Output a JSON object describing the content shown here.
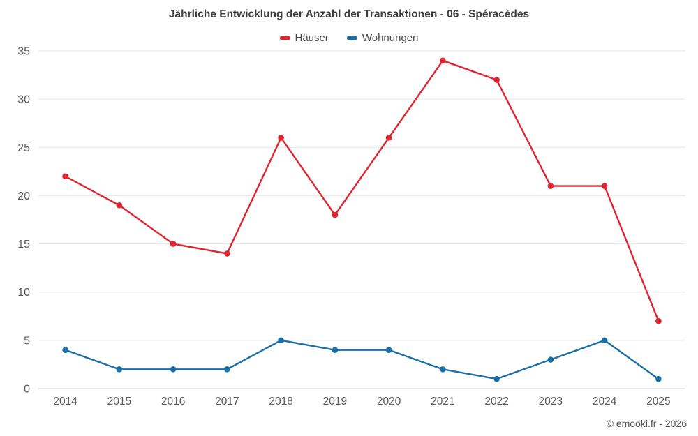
{
  "header": {
    "title": "Jährliche Entwicklung der Anzahl der Transaktionen - 06 - Spéracèdes"
  },
  "legend": [
    {
      "label": "Häuser",
      "color": "#e02430"
    },
    {
      "label": "Wohnungen",
      "color": "#1a6fa8"
    }
  ],
  "footer": {
    "credit": "© emooki.fr - 2026"
  },
  "chart_data": {
    "type": "line",
    "title": "Jährliche Entwicklung der Anzahl der Transaktionen - 06 - Spéracèdes",
    "categories": [
      "2014",
      "2015",
      "2016",
      "2017",
      "2018",
      "2019",
      "2020",
      "2021",
      "2022",
      "2023",
      "2024",
      "2025"
    ],
    "series": [
      {
        "name": "Häuser",
        "color": "#e02430",
        "values": [
          22,
          19,
          15,
          14,
          26,
          18,
          26,
          34,
          32,
          21,
          21,
          7
        ]
      },
      {
        "name": "Wohnungen",
        "color": "#1a6fa8",
        "values": [
          4,
          2,
          2,
          2,
          5,
          4,
          4,
          2,
          1,
          3,
          5,
          1
        ]
      }
    ],
    "xlabel": "",
    "ylabel": "",
    "ylim": [
      0,
      35
    ],
    "yticks": [
      0,
      5,
      10,
      15,
      20,
      25,
      30,
      35
    ],
    "grid": true,
    "legend_position": "top",
    "grid_color": "#e6e6e6",
    "axis_line_color": "#cccccc",
    "tick_label_color": "#5a5a5a"
  }
}
